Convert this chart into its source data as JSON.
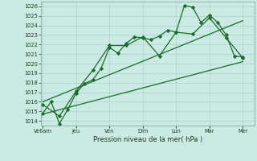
{
  "bg_color": "#cceae4",
  "grid_color": "#a8d4cc",
  "line_color": "#1a6b2a",
  "xlabel": "Pression niveau de la mer( hPa )",
  "ylim": [
    1013.5,
    1026.5
  ],
  "yticks": [
    1014,
    1015,
    1016,
    1017,
    1018,
    1019,
    1020,
    1021,
    1022,
    1023,
    1024,
    1025,
    1026
  ],
  "xtick_labels": [
    "Ve6am",
    "Jeu",
    "Ven",
    "Dim",
    "Lun",
    "Mar",
    "Mer"
  ],
  "xtick_positions": [
    0,
    1,
    2,
    3,
    4,
    5,
    6
  ],
  "xlim": [
    -0.05,
    6.35
  ],
  "series": [
    {
      "x": [
        0.0,
        0.25,
        0.5,
        0.75,
        1.0,
        1.25,
        1.5,
        1.75,
        2.0,
        2.25,
        2.5,
        2.75,
        3.0,
        3.25,
        3.5,
        3.75,
        4.0,
        4.25,
        4.5,
        4.75,
        5.0,
        5.25,
        5.5,
        5.75,
        6.0
      ],
      "y": [
        1014.8,
        1016.0,
        1013.7,
        1015.2,
        1016.9,
        1017.9,
        1018.3,
        1019.5,
        1021.7,
        1021.1,
        1022.1,
        1022.8,
        1022.7,
        1022.5,
        1022.9,
        1023.5,
        1023.3,
        1026.1,
        1025.9,
        1024.3,
        1025.1,
        1024.3,
        1023.0,
        1020.8,
        1020.7
      ],
      "marker": "D",
      "markersize": 2.2,
      "linewidth": 0.9
    },
    {
      "x": [
        0.0,
        0.5,
        1.0,
        1.5,
        2.0,
        2.5,
        3.0,
        3.5,
        4.0,
        4.5,
        5.0,
        5.5,
        6.0
      ],
      "y": [
        1015.7,
        1014.5,
        1017.1,
        1019.3,
        1021.9,
        1021.9,
        1022.8,
        1020.8,
        1023.3,
        1023.1,
        1024.8,
        1022.7,
        1020.6
      ],
      "marker": "D",
      "markersize": 2.2,
      "linewidth": 0.9
    },
    {
      "x": [
        0.0,
        6.0
      ],
      "y": [
        1014.7,
        1020.2
      ],
      "marker": null,
      "markersize": 0,
      "linewidth": 0.9
    },
    {
      "x": [
        0.0,
        6.0
      ],
      "y": [
        1016.0,
        1024.5
      ],
      "marker": null,
      "markersize": 0,
      "linewidth": 0.9
    }
  ]
}
